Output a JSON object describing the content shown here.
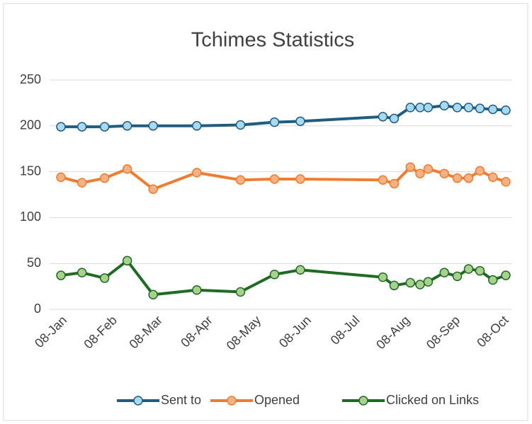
{
  "chart_data": {
    "type": "line",
    "title": "Tchimes Statistics",
    "x": [
      "08-Jan",
      "21-Jan",
      "04-Feb",
      "18-Feb",
      "06-Mar",
      "02-Apr",
      "29-Apr",
      "20-May",
      "05-Jun",
      "26-Jul",
      "02-Aug",
      "12-Aug",
      "18-Aug",
      "23-Aug",
      "02-Sep",
      "10-Sep",
      "17-Sep",
      "24-Sep",
      "02-Oct",
      "10-Oct"
    ],
    "series": [
      {
        "name": "Sent to",
        "color": "#1f5c80",
        "marker_fill": "#a9d9ef",
        "values": [
          199,
          199,
          199,
          200,
          200,
          200,
          201,
          204,
          205,
          210,
          208,
          220,
          220,
          220,
          222,
          220,
          220,
          219,
          218,
          217
        ]
      },
      {
        "name": "Opened",
        "color": "#ed7d31",
        "marker_fill": "#f4b183",
        "values": [
          144,
          138,
          143,
          153,
          131,
          149,
          141,
          142,
          142,
          141,
          137,
          155,
          148,
          153,
          148,
          143,
          143,
          151,
          144,
          139
        ]
      },
      {
        "name": "Clicked on Links",
        "color": "#1e6b24",
        "marker_fill": "#a9d18e",
        "values": [
          37,
          40,
          34,
          53,
          16,
          21,
          19,
          38,
          43,
          35,
          26,
          29,
          27,
          30,
          40,
          36,
          44,
          42,
          32,
          37
        ]
      }
    ],
    "xlim": [
      "08-Jan",
      "10-Oct"
    ],
    "xticks": [
      "08-Jan",
      "08-Feb",
      "08-Mar",
      "08-Apr",
      "08-May",
      "08-Jun",
      "08-Jul",
      "08-Aug",
      "08-Sep",
      "08-Oct"
    ],
    "ylim": [
      0,
      250
    ],
    "yticks": [
      0,
      50,
      100,
      150,
      200,
      250
    ],
    "grid": true,
    "legend": "bottom"
  }
}
